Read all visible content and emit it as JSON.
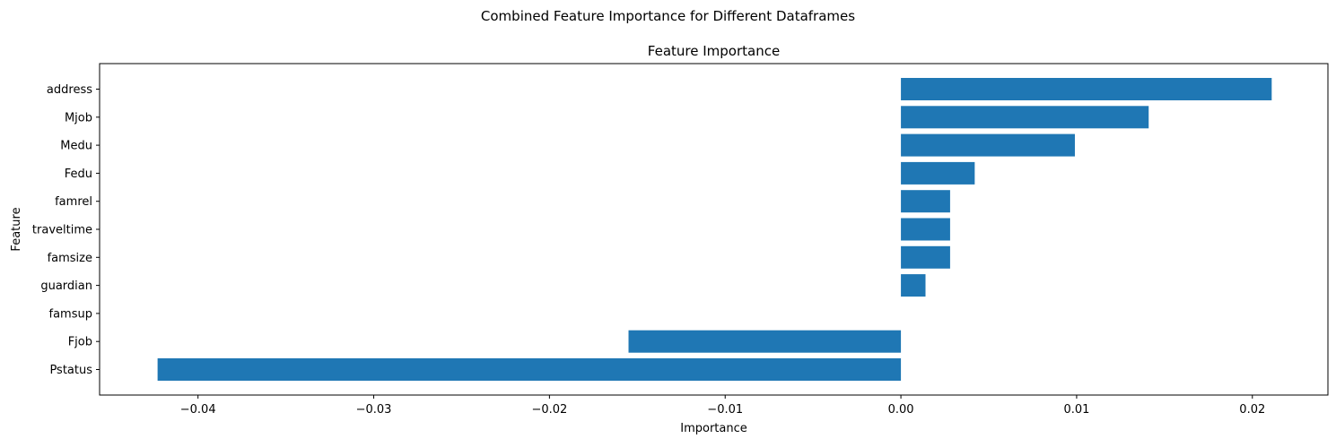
{
  "figure": {
    "suptitle": "Combined Feature Importance for Different Dataframes"
  },
  "chart_data": {
    "type": "bar",
    "orientation": "horizontal",
    "title": "Feature Importance",
    "xlabel": "Importance",
    "ylabel": "Feature",
    "categories": [
      "address",
      "Mjob",
      "Medu",
      "Fedu",
      "famrel",
      "traveltime",
      "famsize",
      "guardian",
      "famsup",
      "Fjob",
      "Pstatus"
    ],
    "values": [
      0.0211,
      0.0141,
      0.0099,
      0.0042,
      0.0028,
      0.0028,
      0.0028,
      0.0014,
      0.0,
      -0.0155,
      -0.0423
    ],
    "xlim": [
      -0.0456,
      0.0243
    ],
    "xticks": [
      -0.04,
      -0.03,
      -0.02,
      -0.01,
      0.0,
      0.01,
      0.02
    ],
    "xtick_labels": [
      "−0.04",
      "−0.03",
      "−0.02",
      "−0.01",
      "0.00",
      "0.01",
      "0.02"
    ],
    "bar_color": "#1f77b4",
    "grid": false,
    "legend": "none"
  }
}
